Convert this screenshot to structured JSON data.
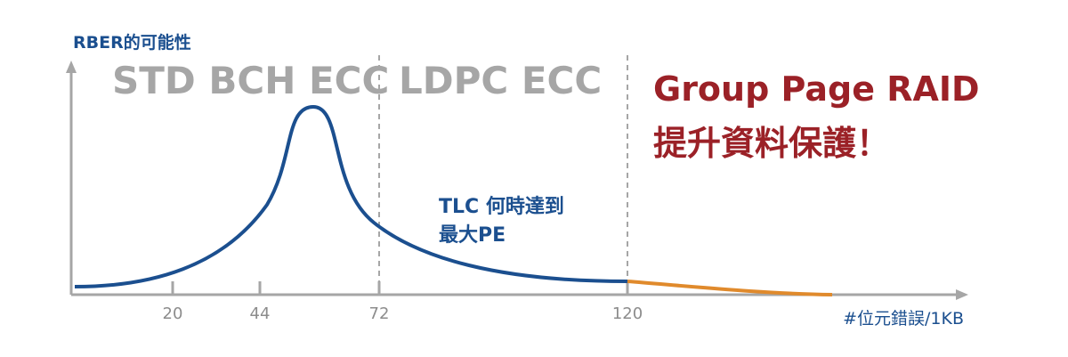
{
  "y_axis_label": "RBER的可能性",
  "x_axis_label": "#位元錯誤/1KB",
  "zones": {
    "std": "STD BCH ECC",
    "ldpc": "LDPC ECC"
  },
  "callout": {
    "line1": "Group Page RAID",
    "line2": "提升資料保護！"
  },
  "annotation": {
    "line1": "TLC 何時達到",
    "line2": "最大PE"
  },
  "ticks": [
    "20",
    "44",
    "72",
    "120"
  ],
  "colors": {
    "axis": "#a6a6a6",
    "curve": "#1b4f8f",
    "tail": "#e08a2c",
    "callout": "#9b2127",
    "zone_text": "#a6a6a6"
  }
}
